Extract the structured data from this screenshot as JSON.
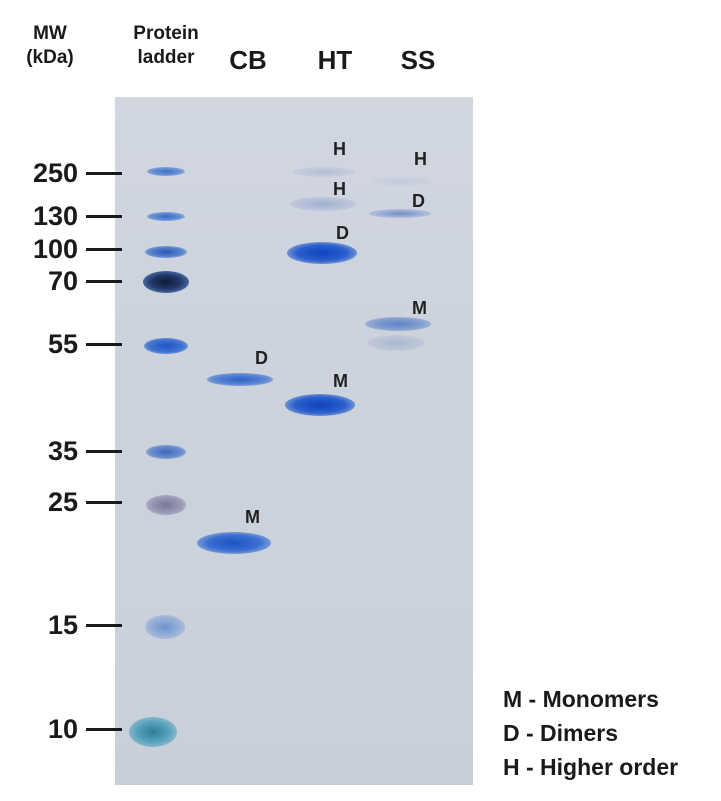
{
  "headers": {
    "mw_line1": "MW",
    "mw_line2": "(kDa)",
    "ladder_line1": "Protein",
    "ladder_line2": "ladder",
    "lanes": [
      "CB",
      "HT",
      "SS"
    ]
  },
  "mw_markers": [
    "250",
    "130",
    "100",
    "70",
    "55",
    "35",
    "25",
    "15",
    "10"
  ],
  "band_labels": {
    "cb": [
      "D",
      "M"
    ],
    "ht": [
      "H",
      "H",
      "D",
      "M"
    ],
    "ss": [
      "H",
      "D",
      "M"
    ]
  },
  "legend": [
    "M - Monomers",
    "D - Dimers",
    "H - Higher order"
  ],
  "colors": {
    "gel_background": "#cdd3dd",
    "band_blue": "#1f55c8",
    "ladder_dark": "#1b2a55",
    "ladder_teal": "#3d8fb0",
    "ladder_purple": "#7f7fa5"
  }
}
